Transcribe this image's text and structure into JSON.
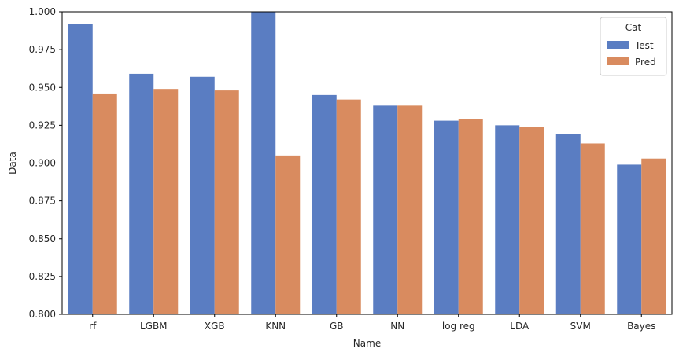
{
  "chart_data": {
    "type": "bar",
    "title": "",
    "xlabel": "Name",
    "ylabel": "Data",
    "categories": [
      "rf",
      "LGBM",
      "XGB",
      "KNN",
      "GB",
      "NN",
      "log reg",
      "LDA",
      "SVM",
      "Bayes"
    ],
    "series": [
      {
        "name": "Test",
        "color": "#5a7dc2",
        "values": [
          0.992,
          0.959,
          0.957,
          1.0,
          0.945,
          0.938,
          0.928,
          0.925,
          0.919,
          0.899
        ]
      },
      {
        "name": "Pred",
        "color": "#d98b5f",
        "values": [
          0.946,
          0.949,
          0.948,
          0.905,
          0.942,
          0.938,
          0.929,
          0.924,
          0.913,
          0.903
        ]
      }
    ],
    "ylim": [
      0.8,
      1.0
    ],
    "yticks": [
      "0.800",
      "0.825",
      "0.850",
      "0.875",
      "0.900",
      "0.925",
      "0.950",
      "0.975",
      "1.000"
    ],
    "grid": false,
    "legend": {
      "title": "Cat",
      "placement": "top-right"
    }
  }
}
